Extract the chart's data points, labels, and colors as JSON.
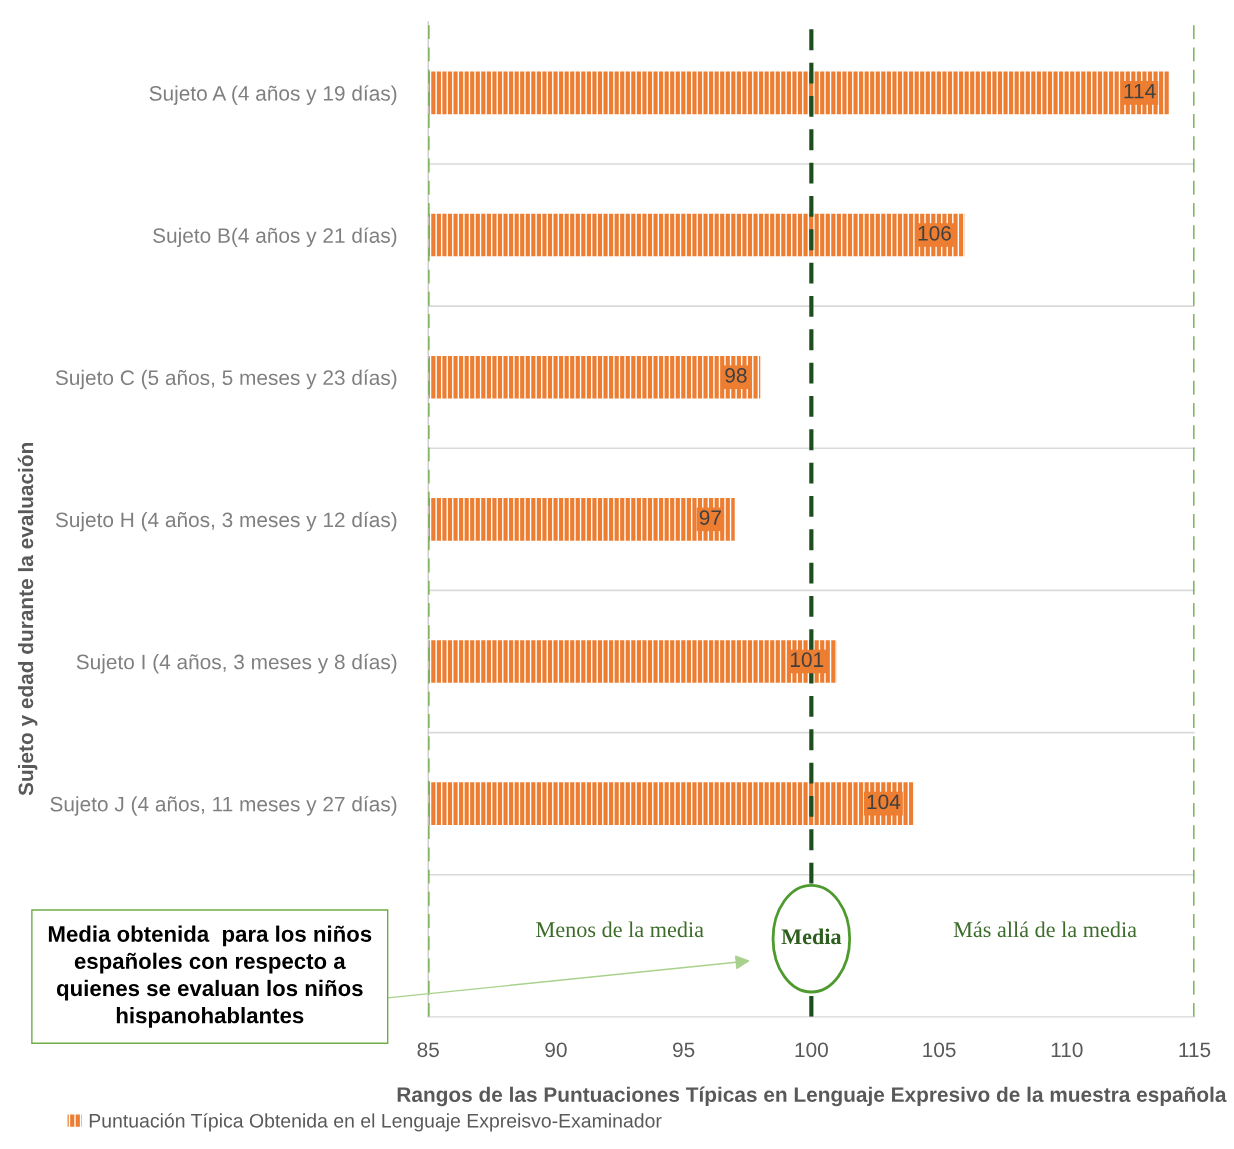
{
  "chart_data": {
    "type": "bar",
    "orientation": "horizontal",
    "categories": [
      "Sujeto A (4 años y 19 días)",
      "Sujeto B(4 años y 21 días)",
      "Sujeto C (5 años, 5 meses y 23 días)",
      "Sujeto H (4 años, 3 meses y 12 días)",
      "Sujeto I (4 años, 3 meses y 8 días)",
      "Sujeto J (4 años, 11 meses y 27 días)",
      null
    ],
    "series": [
      {
        "name": "Puntuación Típica Obtenida en el Lenguaje Expreisvo-Examinador",
        "color": "#ed7d31",
        "values": [
          114,
          106,
          98,
          97,
          101,
          104,
          null
        ]
      }
    ],
    "data_labels": true,
    "xlim": [
      85,
      115
    ],
    "xticks": [
      85,
      90,
      95,
      100,
      105,
      110,
      115
    ],
    "xlabel": "Rangos de las Puntuaciones Típicas en Lenguaje Expresivo de la muestra española",
    "ylabel": "Sujeto y edad durante la evaluación",
    "ref_lines": [
      {
        "axis": "x",
        "value": 100,
        "label": "Media",
        "color": "#1e4d1e",
        "line_style": "dashed"
      },
      {
        "axis": "x",
        "value": 85,
        "label": null,
        "color": "#70ad47",
        "line_style": "dashed"
      },
      {
        "axis": "x",
        "value": 115,
        "label": null,
        "color": "#70ad47",
        "line_style": "dashed"
      }
    ],
    "annotations": [
      "Menos de la media",
      "Más allá de la media",
      "Media obtenida  para los niños españoles con respecto a quienes se evaluan los niños hispanohablantes"
    ],
    "grid": "y",
    "legend": "bottom left"
  }
}
